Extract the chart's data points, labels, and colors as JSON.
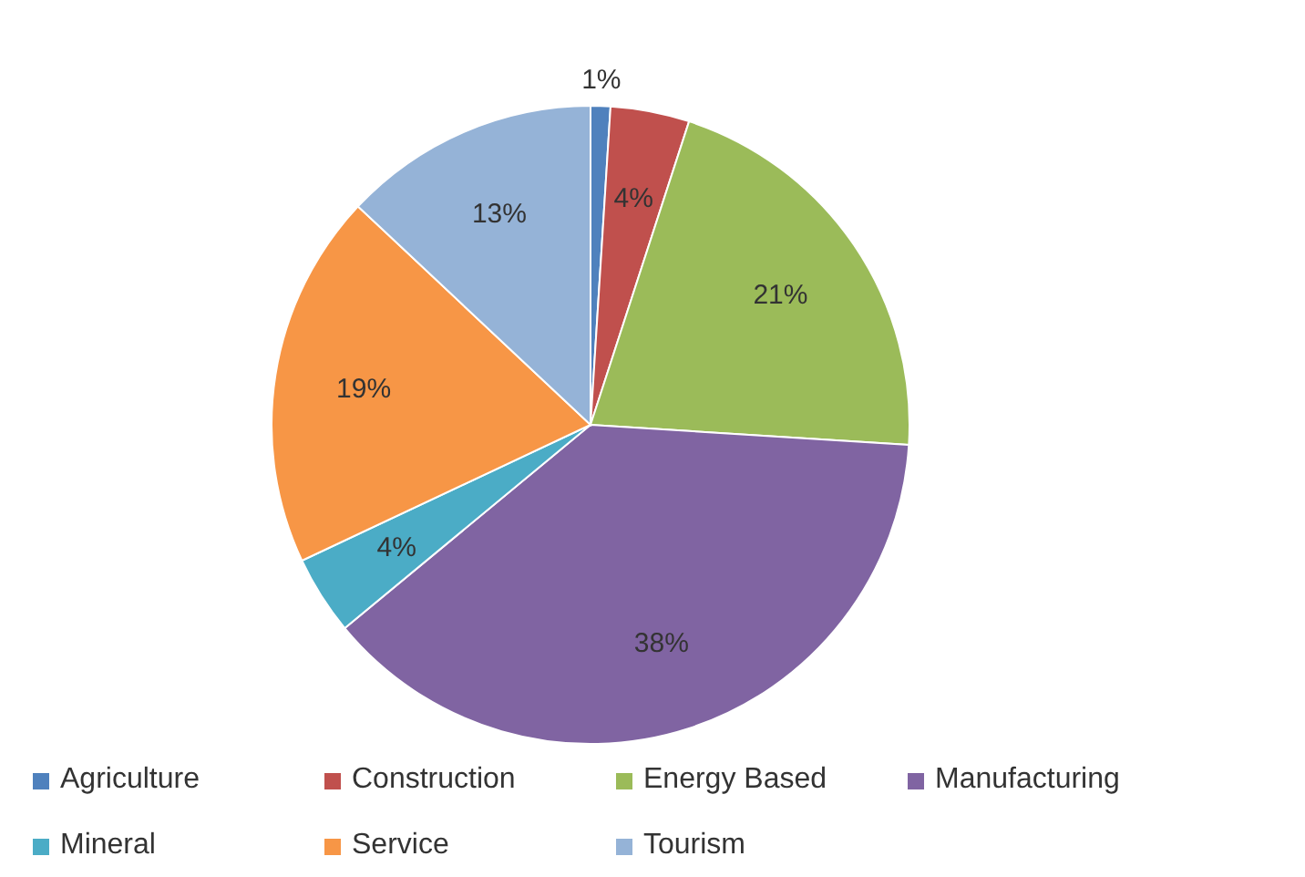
{
  "chart_data": {
    "type": "pie",
    "categories": [
      "Agriculture",
      "Construction",
      "Energy Based",
      "Manufacturing",
      "Mineral",
      "Service",
      "Tourism"
    ],
    "values": [
      1,
      4,
      21,
      38,
      4,
      19,
      13
    ],
    "colors": [
      "#4f81bd",
      "#c0504d",
      "#9bbb59",
      "#8064a2",
      "#4bacc6",
      "#f79646",
      "#95b3d7"
    ],
    "value_labels": [
      "1%",
      "4%",
      "21%",
      "38%",
      "4%",
      "19%",
      "13%"
    ],
    "legend": "bottom"
  }
}
